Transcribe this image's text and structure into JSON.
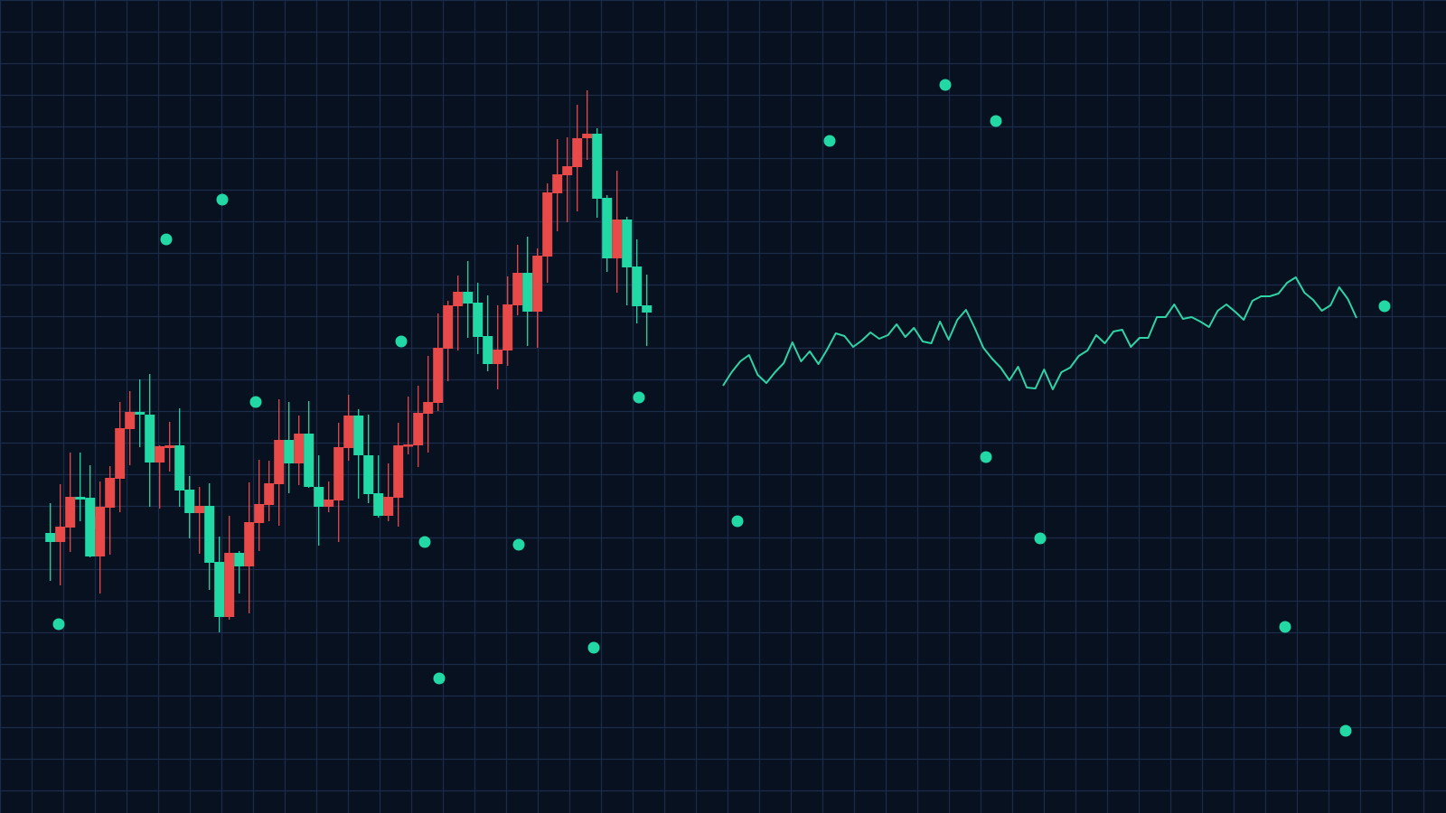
{
  "chart_data": {
    "type": "candlestick+line+scatter",
    "title": "",
    "xlabel": "",
    "ylabel": "",
    "grid": true,
    "legend": "none",
    "colors": {
      "background": "#08111f",
      "grid": "#1b2b4a",
      "up": "#e84a4a",
      "down": "#22d9a5",
      "line": "#2fd3a5",
      "scatter": "#22d9a5"
    },
    "ylim": [
      0,
      900
    ],
    "xlim": [
      0,
      160
    ],
    "candles_ohlc": [
      [
        310,
        343,
        257,
        300
      ],
      [
        300,
        364,
        252,
        317
      ],
      [
        316,
        399,
        289,
        350
      ],
      [
        350,
        399,
        323,
        347
      ],
      [
        349,
        385,
        283,
        284
      ],
      [
        284,
        367,
        243,
        339
      ],
      [
        338,
        384,
        286,
        371
      ],
      [
        370,
        455,
        333,
        426
      ],
      [
        425,
        467,
        385,
        444
      ],
      [
        444,
        480,
        405,
        441
      ],
      [
        441,
        486,
        339,
        388
      ],
      [
        388,
        407,
        337,
        406
      ],
      [
        404,
        433,
        378,
        407
      ],
      [
        407,
        448,
        339,
        357
      ],
      [
        358,
        373,
        304,
        332
      ],
      [
        332,
        361,
        287,
        340
      ],
      [
        340,
        365,
        247,
        277
      ],
      [
        278,
        306,
        200,
        217
      ],
      [
        217,
        329,
        214,
        288
      ],
      [
        288,
        290,
        243,
        273
      ],
      [
        273,
        366,
        221,
        322
      ],
      [
        321,
        391,
        290,
        342
      ],
      [
        341,
        390,
        323,
        365
      ],
      [
        364,
        458,
        318,
        413
      ],
      [
        413,
        455,
        354,
        387
      ],
      [
        387,
        440,
        363,
        420
      ],
      [
        420,
        456,
        360,
        361
      ],
      [
        361,
        396,
        296,
        339
      ],
      [
        339,
        367,
        333,
        347
      ],
      [
        346,
        432,
        300,
        405
      ],
      [
        404,
        463,
        390,
        440
      ],
      [
        440,
        447,
        348,
        396
      ],
      [
        396,
        441,
        343,
        353
      ],
      [
        354,
        396,
        327,
        329
      ],
      [
        329,
        387,
        323,
        350
      ],
      [
        349,
        432,
        317,
        407
      ],
      [
        406,
        461,
        397,
        408
      ],
      [
        407,
        473,
        383,
        443
      ],
      [
        442,
        506,
        399,
        455
      ],
      [
        454,
        553,
        445,
        515
      ],
      [
        514,
        567,
        478,
        562
      ],
      [
        561,
        595,
        512,
        577
      ],
      [
        577,
        611,
        526,
        564
      ],
      [
        565,
        587,
        508,
        527
      ],
      [
        528,
        573,
        489,
        497
      ],
      [
        497,
        562,
        469,
        513
      ],
      [
        512,
        594,
        495,
        563
      ],
      [
        562,
        629,
        551,
        598
      ],
      [
        598,
        638,
        517,
        555
      ],
      [
        555,
        625,
        515,
        617
      ],
      [
        616,
        697,
        587,
        687
      ],
      [
        686,
        746,
        644,
        707
      ],
      [
        706,
        748,
        654,
        716
      ],
      [
        715,
        784,
        666,
        747
      ],
      [
        747,
        800,
        723,
        752
      ],
      [
        752,
        758,
        659,
        680
      ],
      [
        681,
        684,
        599,
        614
      ],
      [
        614,
        711,
        576,
        657
      ],
      [
        657,
        660,
        562,
        604
      ],
      [
        605,
        635,
        542,
        561
      ],
      [
        562,
        596,
        517,
        554
      ]
    ],
    "line_values": [
      473,
      488,
      500,
      507,
      485,
      476,
      488,
      498,
      521,
      500,
      511,
      497,
      513,
      531,
      528,
      516,
      523,
      532,
      525,
      529,
      541,
      527,
      537,
      522,
      520,
      544,
      524,
      546,
      557,
      537,
      515,
      503,
      493,
      479,
      494,
      471,
      470,
      491,
      469,
      488,
      493,
      506,
      512,
      529,
      520,
      533,
      535,
      516,
      526,
      526,
      549,
      549,
      563,
      547,
      549,
      544,
      538,
      556,
      563,
      555,
      546,
      567,
      572,
      572,
      575,
      587,
      593,
      576,
      568,
      556,
      562,
      582,
      569,
      548
    ],
    "scatter_points": [
      [
        6.5,
        209
      ],
      [
        10.5,
        321
      ],
      [
        18.4,
        635
      ],
      [
        24.6,
        679
      ],
      [
        28.3,
        455
      ],
      [
        44.4,
        522
      ],
      [
        47.0,
        300
      ],
      [
        48.6,
        149
      ],
      [
        57.4,
        297
      ],
      [
        65.7,
        183
      ],
      [
        70.7,
        460
      ],
      [
        81.6,
        323
      ],
      [
        91.8,
        744
      ],
      [
        104.6,
        806
      ],
      [
        109.1,
        394
      ],
      [
        110.2,
        766
      ],
      [
        115.1,
        304
      ],
      [
        142.2,
        206
      ],
      [
        148.9,
        91
      ],
      [
        153.2,
        561
      ]
    ]
  }
}
